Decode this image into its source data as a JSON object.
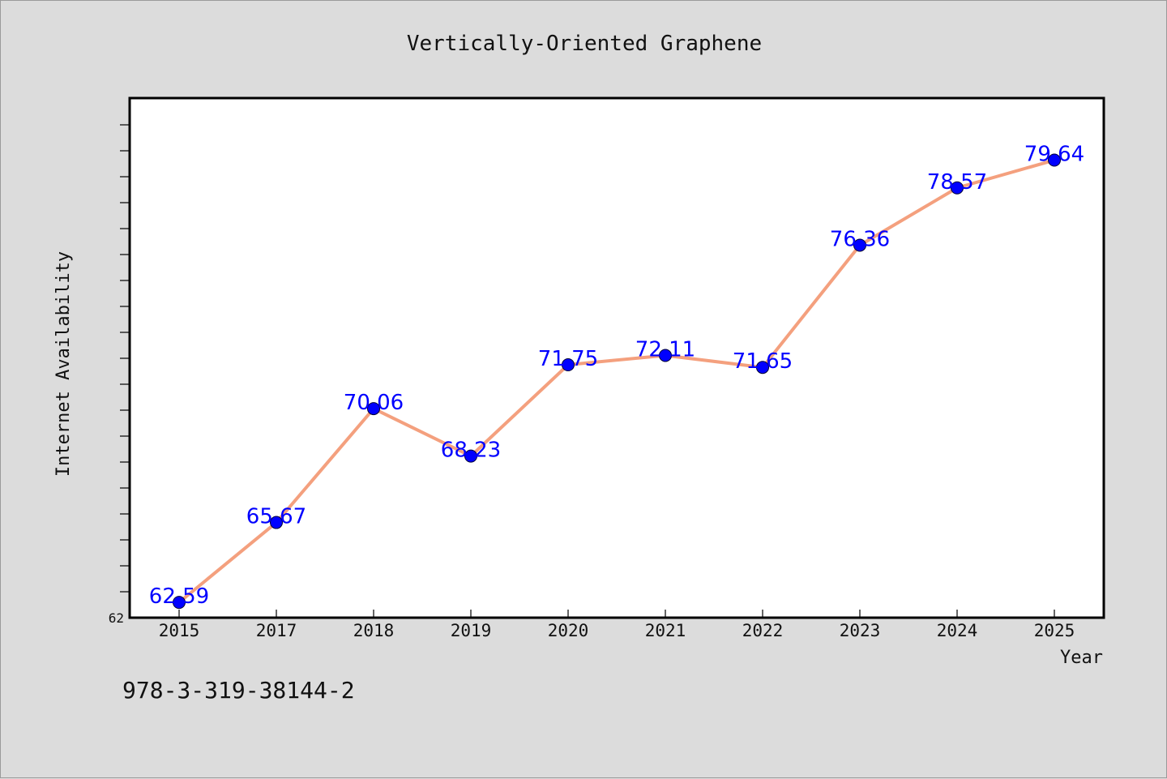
{
  "chart_data": {
    "type": "line",
    "title": "Vertically-Oriented Graphene",
    "xlabel": "Year",
    "ylabel": "Internet Availability",
    "categories": [
      "2015",
      "2017",
      "2018",
      "2019",
      "2020",
      "2021",
      "2022",
      "2023",
      "2024",
      "2025"
    ],
    "series": [
      {
        "values": [
          62.59,
          65.67,
          70.06,
          68.23,
          71.75,
          72.11,
          71.65,
          76.36,
          78.57,
          79.64
        ],
        "line_color": "#f4a07e",
        "marker_color": "#0000ff",
        "labels": [
          "62.59",
          "65.67",
          "70.06",
          "68.23",
          "71.75",
          "72.11",
          "71.65",
          "76.36",
          "78.57",
          "79.64"
        ]
      }
    ],
    "ylim": [
      62,
      82
    ],
    "yticks_labeled": [
      "62"
    ],
    "grid": false,
    "legend": "none"
  },
  "footnote": "978-3-319-38144-2",
  "colors": {
    "background": "#dcdcdc",
    "plot_background": "#ffffff",
    "line": "#f4a07e",
    "marker": "#0000ff",
    "data_label": "#0000ff"
  }
}
